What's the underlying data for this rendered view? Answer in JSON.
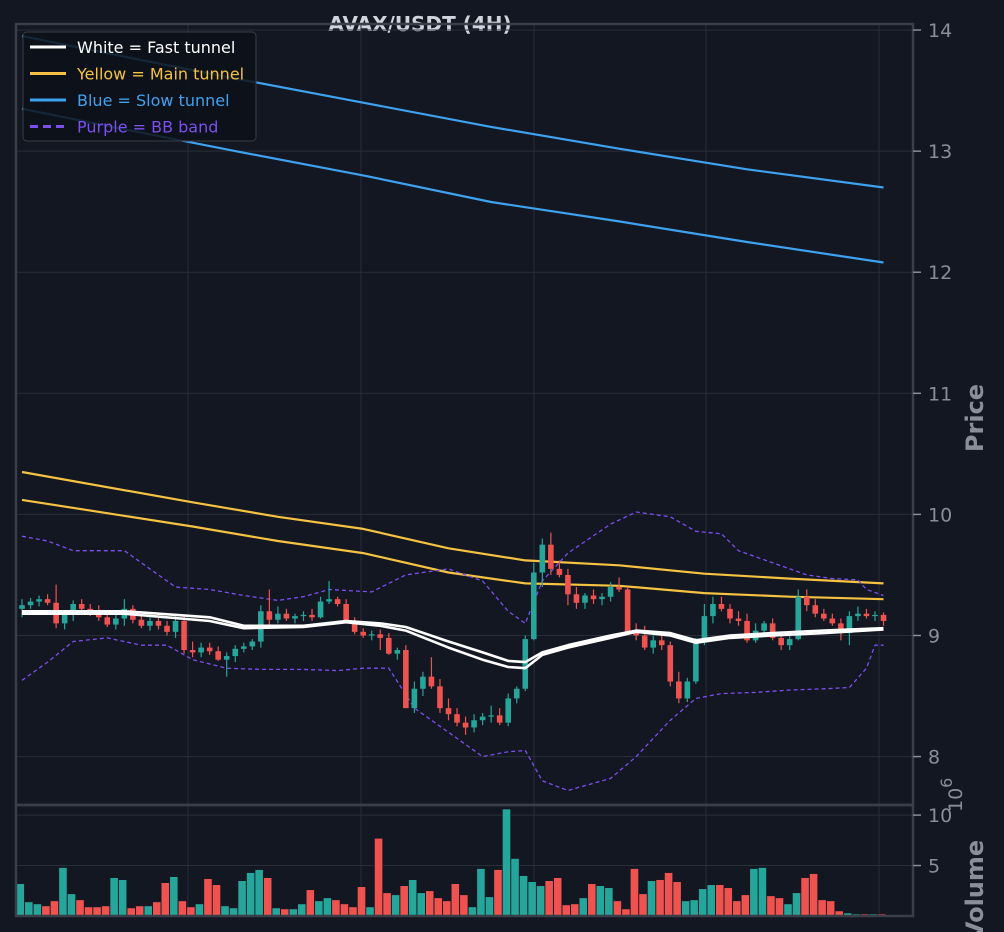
{
  "chart_data": [
    {
      "type": "candlestick",
      "title": "AVAX/USDT (4H)",
      "ylabel": "Price",
      "ylim": [
        7.6,
        14.05
      ],
      "yticks": [
        8,
        9,
        10,
        11,
        12,
        13,
        14
      ],
      "grid": true,
      "legend": {
        "placement": "top-left",
        "entries": [
          {
            "label": "White = Fast tunnel",
            "color": "#ffffff",
            "style": "solid"
          },
          {
            "label": "Yellow = Main tunnel",
            "color": "#f5c242",
            "style": "solid"
          },
          {
            "label": "Blue = Slow tunnel",
            "color": "#3ea2f0",
            "style": "solid"
          },
          {
            "label": "Purple = BB band",
            "color": "#7b4ff0",
            "style": "dashed"
          }
        ]
      },
      "colors": {
        "up": "#26a69a",
        "down": "#ef5350",
        "background": "#131722",
        "grid": "#2a2e39"
      },
      "ohlc": [
        [
          9.22,
          9.3,
          9.15,
          9.25
        ],
        [
          9.25,
          9.31,
          9.22,
          9.28
        ],
        [
          9.28,
          9.33,
          9.24,
          9.3
        ],
        [
          9.3,
          9.34,
          9.25,
          9.27
        ],
        [
          9.27,
          9.42,
          9.06,
          9.1
        ],
        [
          9.1,
          9.2,
          9.05,
          9.17
        ],
        [
          9.17,
          9.29,
          9.12,
          9.26
        ],
        [
          9.26,
          9.3,
          9.18,
          9.22
        ],
        [
          9.22,
          9.26,
          9.16,
          9.2
        ],
        [
          9.2,
          9.25,
          9.12,
          9.15
        ],
        [
          9.15,
          9.19,
          9.07,
          9.09
        ],
        [
          9.09,
          9.17,
          9.05,
          9.14
        ],
        [
          9.14,
          9.3,
          9.08,
          9.22
        ],
        [
          9.22,
          9.25,
          9.1,
          9.13
        ],
        [
          9.13,
          9.18,
          9.06,
          9.08
        ],
        [
          9.08,
          9.15,
          9.04,
          9.12
        ],
        [
          9.12,
          9.18,
          9.05,
          9.08
        ],
        [
          9.08,
          9.12,
          9.0,
          9.03
        ],
        [
          9.03,
          9.18,
          8.98,
          9.12
        ],
        [
          9.12,
          9.16,
          8.85,
          8.88
        ],
        [
          8.88,
          8.95,
          8.82,
          8.86
        ],
        [
          8.86,
          8.94,
          8.82,
          8.9
        ],
        [
          8.9,
          8.94,
          8.84,
          8.87
        ],
        [
          8.87,
          8.91,
          8.79,
          8.8
        ],
        [
          8.8,
          8.86,
          8.66,
          8.83
        ],
        [
          8.83,
          8.92,
          8.78,
          8.89
        ],
        [
          8.89,
          8.94,
          8.86,
          8.91
        ],
        [
          8.91,
          8.97,
          8.88,
          8.95
        ],
        [
          8.95,
          9.25,
          8.9,
          9.2
        ],
        [
          9.2,
          9.38,
          9.08,
          9.13
        ],
        [
          9.13,
          9.24,
          9.1,
          9.18
        ],
        [
          9.18,
          9.22,
          9.12,
          9.14
        ],
        [
          9.14,
          9.18,
          9.1,
          9.16
        ],
        [
          9.16,
          9.2,
          9.12,
          9.17
        ],
        [
          9.17,
          9.22,
          9.12,
          9.15
        ],
        [
          9.15,
          9.32,
          9.14,
          9.28
        ],
        [
          9.28,
          9.45,
          9.26,
          9.3
        ],
        [
          9.3,
          9.32,
          9.24,
          9.26
        ],
        [
          9.26,
          9.3,
          9.1,
          9.12
        ],
        [
          9.12,
          9.15,
          9.01,
          9.03
        ],
        [
          9.03,
          9.06,
          8.98,
          9.0
        ],
        [
          9.0,
          9.04,
          8.96,
          9.01
        ],
        [
          9.01,
          9.05,
          8.88,
          8.98
        ],
        [
          8.98,
          9.02,
          8.84,
          8.85
        ],
        [
          8.85,
          8.9,
          8.8,
          8.88
        ],
        [
          8.88,
          8.92,
          8.4,
          8.4
        ],
        [
          8.4,
          8.62,
          8.36,
          8.56
        ],
        [
          8.56,
          8.7,
          8.5,
          8.66
        ],
        [
          8.66,
          8.82,
          8.56,
          8.58
        ],
        [
          8.58,
          8.64,
          8.36,
          8.4
        ],
        [
          8.4,
          8.48,
          8.3,
          8.35
        ],
        [
          8.35,
          8.4,
          8.25,
          8.28
        ],
        [
          8.28,
          8.33,
          8.18,
          8.24
        ],
        [
          8.24,
          8.35,
          8.2,
          8.3
        ],
        [
          8.3,
          8.36,
          8.26,
          8.33
        ],
        [
          8.33,
          8.42,
          8.28,
          8.34
        ],
        [
          8.34,
          8.4,
          8.26,
          8.28
        ],
        [
          8.28,
          8.52,
          8.25,
          8.48
        ],
        [
          8.48,
          8.58,
          8.44,
          8.56
        ],
        [
          8.56,
          9.0,
          8.54,
          8.97
        ],
        [
          8.97,
          9.6,
          8.96,
          9.52
        ],
        [
          9.52,
          9.8,
          9.4,
          9.75
        ],
        [
          9.75,
          9.85,
          9.5,
          9.55
        ],
        [
          9.55,
          9.62,
          9.48,
          9.5
        ],
        [
          9.5,
          9.55,
          9.25,
          9.34
        ],
        [
          9.34,
          9.4,
          9.22,
          9.27
        ],
        [
          9.27,
          9.35,
          9.22,
          9.33
        ],
        [
          9.33,
          9.38,
          9.26,
          9.3
        ],
        [
          9.3,
          9.35,
          9.25,
          9.32
        ],
        [
          9.32,
          9.44,
          9.28,
          9.4
        ],
        [
          9.4,
          9.48,
          9.36,
          9.38
        ],
        [
          9.38,
          9.4,
          9.0,
          9.03
        ],
        [
          9.03,
          9.1,
          8.96,
          9.0
        ],
        [
          9.0,
          9.08,
          8.88,
          8.9
        ],
        [
          8.9,
          9.0,
          8.85,
          8.96
        ],
        [
          8.96,
          9.0,
          8.88,
          8.92
        ],
        [
          8.92,
          8.95,
          8.58,
          8.62
        ],
        [
          8.62,
          8.7,
          8.44,
          8.48
        ],
        [
          8.48,
          8.65,
          8.45,
          8.62
        ],
        [
          8.62,
          8.98,
          8.6,
          8.95
        ],
        [
          8.95,
          9.26,
          8.92,
          9.16
        ],
        [
          9.16,
          9.32,
          9.1,
          9.26
        ],
        [
          9.26,
          9.32,
          9.2,
          9.22
        ],
        [
          9.22,
          9.26,
          9.1,
          9.14
        ],
        [
          9.14,
          9.2,
          9.08,
          9.12
        ],
        [
          9.12,
          9.18,
          8.94,
          8.96
        ],
        [
          8.96,
          9.1,
          8.94,
          9.04
        ],
        [
          9.04,
          9.12,
          9.0,
          9.1
        ],
        [
          9.1,
          9.14,
          8.96,
          8.98
        ],
        [
          8.98,
          9.02,
          8.88,
          8.92
        ],
        [
          8.92,
          9.0,
          8.88,
          8.97
        ],
        [
          8.97,
          9.38,
          8.96,
          9.32
        ],
        [
          9.32,
          9.38,
          9.2,
          9.25
        ],
        [
          9.25,
          9.3,
          9.15,
          9.18
        ],
        [
          9.18,
          9.22,
          9.12,
          9.14
        ],
        [
          9.14,
          9.18,
          9.08,
          9.1
        ],
        [
          9.1,
          9.14,
          8.96,
          9.02
        ],
        [
          9.02,
          9.2,
          8.92,
          9.16
        ],
        [
          9.16,
          9.24,
          9.12,
          9.18
        ],
        [
          9.18,
          9.22,
          9.14,
          9.16
        ],
        [
          9.16,
          9.2,
          9.12,
          9.17
        ],
        [
          9.17,
          9.19,
          9.08,
          9.12
        ]
      ],
      "fast_tunnel": {
        "upper": [
          [
            0,
            9.2
          ],
          [
            12,
            9.2
          ],
          [
            22,
            9.15
          ],
          [
            26,
            9.08
          ],
          [
            33,
            9.08
          ],
          [
            38,
            9.12
          ],
          [
            42,
            9.1
          ],
          [
            45,
            9.07
          ],
          [
            50,
            8.95
          ],
          [
            54,
            8.86
          ],
          [
            57,
            8.79
          ],
          [
            59,
            8.78
          ],
          [
            61,
            8.86
          ],
          [
            64,
            8.92
          ],
          [
            69,
            9.0
          ],
          [
            72,
            9.04
          ],
          [
            76,
            9.02
          ],
          [
            79,
            8.96
          ],
          [
            83,
            9.0
          ],
          [
            88,
            9.02
          ],
          [
            94,
            9.04
          ],
          [
            101,
            9.06
          ]
        ],
        "lower": [
          [
            0,
            9.18
          ],
          [
            12,
            9.18
          ],
          [
            22,
            9.12
          ],
          [
            26,
            9.06
          ],
          [
            33,
            9.07
          ],
          [
            38,
            9.11
          ],
          [
            42,
            9.08
          ],
          [
            45,
            9.04
          ],
          [
            50,
            8.9
          ],
          [
            54,
            8.8
          ],
          [
            57,
            8.74
          ],
          [
            59,
            8.73
          ],
          [
            61,
            8.84
          ],
          [
            64,
            8.9
          ],
          [
            69,
            8.98
          ],
          [
            72,
            9.03
          ],
          [
            76,
            9.0
          ],
          [
            79,
            8.94
          ],
          [
            83,
            8.98
          ],
          [
            88,
            9.0
          ],
          [
            94,
            9.02
          ],
          [
            101,
            9.05
          ]
        ]
      },
      "main_tunnel": {
        "upper": [
          [
            0,
            10.35
          ],
          [
            20,
            10.1
          ],
          [
            30,
            9.98
          ],
          [
            40,
            9.88
          ],
          [
            50,
            9.72
          ],
          [
            59,
            9.62
          ],
          [
            70,
            9.58
          ],
          [
            80,
            9.51
          ],
          [
            90,
            9.47
          ],
          [
            101,
            9.43
          ]
        ],
        "lower": [
          [
            0,
            10.12
          ],
          [
            20,
            9.9
          ],
          [
            30,
            9.78
          ],
          [
            40,
            9.68
          ],
          [
            50,
            9.52
          ],
          [
            59,
            9.43
          ],
          [
            70,
            9.41
          ],
          [
            80,
            9.35
          ],
          [
            90,
            9.32
          ],
          [
            101,
            9.3
          ]
        ]
      },
      "slow_tunnel": {
        "upper": [
          [
            0,
            13.95
          ],
          [
            12,
            13.78
          ],
          [
            25,
            13.6
          ],
          [
            40,
            13.4
          ],
          [
            55,
            13.2
          ],
          [
            70,
            13.02
          ],
          [
            85,
            12.85
          ],
          [
            101,
            12.7
          ]
        ],
        "lower": [
          [
            0,
            13.35
          ],
          [
            12,
            13.18
          ],
          [
            25,
            13.0
          ],
          [
            40,
            12.8
          ],
          [
            55,
            12.58
          ],
          [
            70,
            12.42
          ],
          [
            85,
            12.25
          ],
          [
            101,
            12.08
          ]
        ]
      },
      "bb_band": {
        "upper": [
          [
            0,
            9.82
          ],
          [
            3,
            9.78
          ],
          [
            6,
            9.7
          ],
          [
            12,
            9.7
          ],
          [
            15,
            9.55
          ],
          [
            18,
            9.4
          ],
          [
            22,
            9.38
          ],
          [
            26,
            9.33
          ],
          [
            30,
            9.29
          ],
          [
            33,
            9.32
          ],
          [
            36,
            9.38
          ],
          [
            41,
            9.36
          ],
          [
            45,
            9.5
          ],
          [
            50,
            9.55
          ],
          [
            54,
            9.45
          ],
          [
            57,
            9.2
          ],
          [
            59,
            9.1
          ],
          [
            61,
            9.45
          ],
          [
            64,
            9.68
          ],
          [
            69,
            9.92
          ],
          [
            72,
            10.02
          ],
          [
            76,
            9.98
          ],
          [
            79,
            9.86
          ],
          [
            82,
            9.84
          ],
          [
            84,
            9.7
          ],
          [
            88,
            9.6
          ],
          [
            92,
            9.5
          ],
          [
            95,
            9.47
          ],
          [
            98,
            9.46
          ],
          [
            99,
            9.38
          ],
          [
            101,
            9.33
          ]
        ],
        "lower": [
          [
            0,
            8.63
          ],
          [
            3,
            8.78
          ],
          [
            6,
            8.95
          ],
          [
            10,
            8.98
          ],
          [
            14,
            8.92
          ],
          [
            17,
            8.92
          ],
          [
            20,
            8.8
          ],
          [
            24,
            8.73
          ],
          [
            28,
            8.72
          ],
          [
            33,
            8.72
          ],
          [
            37,
            8.71
          ],
          [
            40,
            8.73
          ],
          [
            43,
            8.73
          ],
          [
            46,
            8.4
          ],
          [
            50,
            8.2
          ],
          [
            54,
            8.0
          ],
          [
            57,
            8.04
          ],
          [
            59,
            8.05
          ],
          [
            61,
            7.8
          ],
          [
            64,
            7.72
          ],
          [
            69,
            7.82
          ],
          [
            72,
            8.0
          ],
          [
            76,
            8.3
          ],
          [
            79,
            8.48
          ],
          [
            82,
            8.52
          ],
          [
            86,
            8.53
          ],
          [
            90,
            8.55
          ],
          [
            94,
            8.56
          ],
          [
            97,
            8.57
          ],
          [
            99,
            8.73
          ],
          [
            100,
            8.92
          ],
          [
            101,
            8.92
          ]
        ]
      }
    },
    {
      "type": "bar",
      "ylabel": "Volume",
      "scale_label": "10^6",
      "ylim": [
        0,
        11
      ],
      "yticks": [
        5,
        10
      ],
      "grid": true,
      "values": [
        3.2,
        1.4,
        1.2,
        1.0,
        1.5,
        4.8,
        2.2,
        1.6,
        0.9,
        0.9,
        1.0,
        3.8,
        3.6,
        0.8,
        1.0,
        1.0,
        1.4,
        3.3,
        3.9,
        1.5,
        0.9,
        1.2,
        3.7,
        3.1,
        1.0,
        0.8,
        3.5,
        4.3,
        4.6,
        3.8,
        0.8,
        0.7,
        0.7,
        1.2,
        2.6,
        1.5,
        1.8,
        1.6,
        1.2,
        0.9,
        2.9,
        0.9,
        7.7,
        2.3,
        2.1,
        3.0,
        3.6,
        2.3,
        2.5,
        1.8,
        1.5,
        3.2,
        2.1,
        0.9,
        4.7,
        1.9,
        4.6,
        10.6,
        5.7,
        4.0,
        3.4,
        3.0,
        3.5,
        3.8,
        1.1,
        1.2,
        1.8,
        3.2,
        3.0,
        2.8,
        1.5,
        0.7,
        4.7,
        2.2,
        3.5,
        3.6,
        4.3,
        3.4,
        1.5,
        1.6,
        2.7,
        3.1,
        3.1,
        2.8,
        1.5,
        2.1,
        4.7,
        4.8,
        2.0,
        1.8,
        1.2,
        2.3,
        3.8,
        4.2,
        1.6,
        1.5,
        0.5,
        0.3,
        0.2,
        0.2,
        0.2,
        0.2
      ]
    }
  ]
}
